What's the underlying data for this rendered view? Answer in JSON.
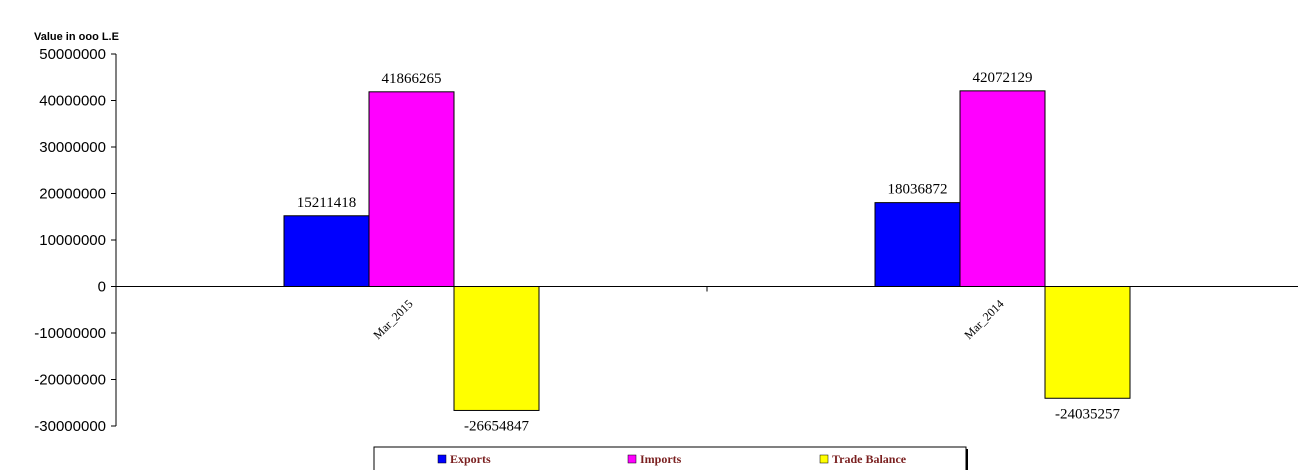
{
  "chart_data": {
    "type": "bar",
    "title": "",
    "ylabel": "Value in ooo L.E",
    "xlabel": "",
    "categories": [
      "Mar_2015",
      "Mar_2014"
    ],
    "series": [
      {
        "name": "Exports",
        "values": [
          15211418,
          18036872
        ],
        "color": "#0000ff"
      },
      {
        "name": "Imports",
        "values": [
          41866265,
          42072129
        ],
        "color": "#ff00ff"
      },
      {
        "name": "Trade Balance",
        "values": [
          -26654847,
          -24035257
        ],
        "color": "#ffff00"
      }
    ],
    "ylim": [
      -30000000,
      50000000
    ],
    "yticks": [
      50000000,
      40000000,
      30000000,
      20000000,
      10000000,
      0,
      -10000000,
      -20000000,
      -30000000
    ],
    "grid": false,
    "legend": "bottom"
  }
}
